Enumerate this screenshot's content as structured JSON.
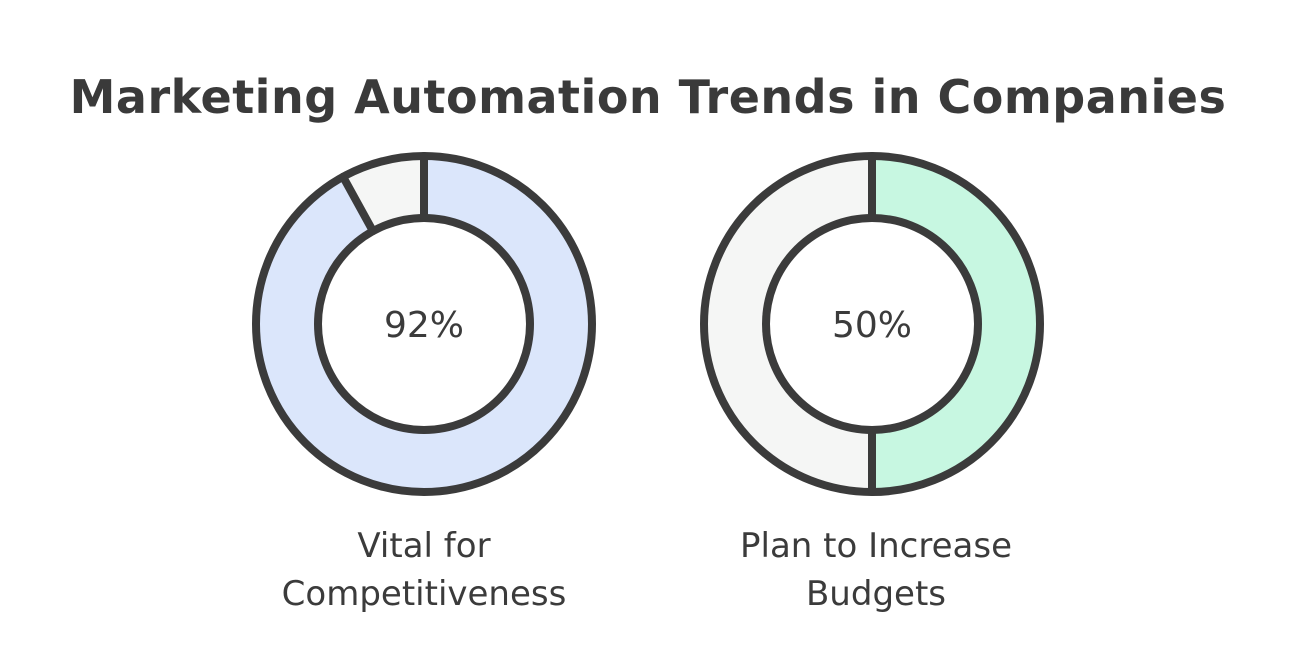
{
  "title": "Marketing Automation Trends in Companies",
  "chart_data": {
    "type": "pie",
    "variant": "donut",
    "title": "Marketing Automation Trends in Companies",
    "items": [
      {
        "value": 92,
        "value_label": "92%",
        "label_lines": [
          "Vital for",
          "Competitiveness"
        ],
        "color": "#dbe6fb"
      },
      {
        "value": 50,
        "value_label": "50%",
        "label_lines": [
          "Plan to Increase",
          "Budgets"
        ],
        "color": "#c7f7e1"
      }
    ],
    "remainder_color": "#f5f6f5",
    "stroke_color": "#3b3b3b"
  }
}
